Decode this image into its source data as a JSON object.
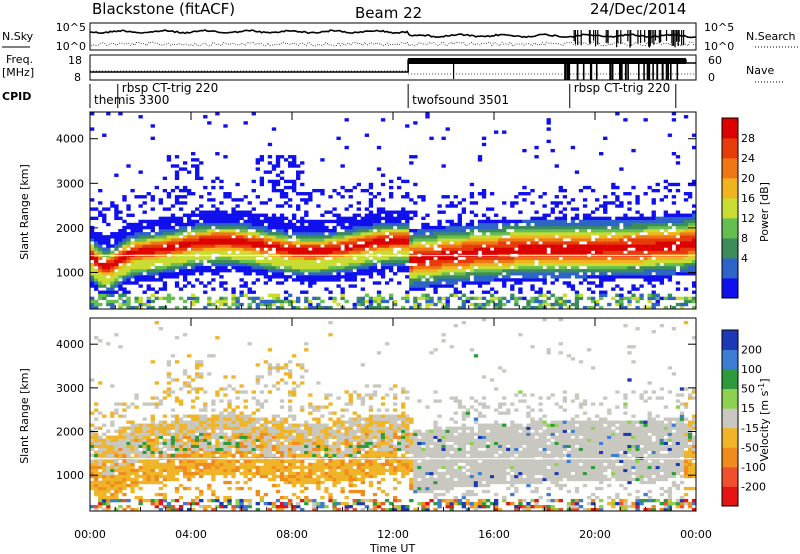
{
  "header": {
    "station": "Blackstone (fitACF)",
    "beam": "Beam 22",
    "date": "24/Dec/2014"
  },
  "top_panels": {
    "nsky_label": "N.Sky",
    "nsky_ticks": [
      "10^5",
      "10^0"
    ],
    "nsearch_label": "N.Search",
    "nsearch_ticks": [
      "10^5",
      "10^0"
    ],
    "freq_label_1": "Freq.",
    "freq_label_2": "[MHz]",
    "freq_ticks": [
      "18",
      "8"
    ],
    "nave_label": "Nave",
    "nave_ticks": [
      "60",
      "0"
    ],
    "cpid_label": "CPID",
    "cpid_segments": [
      {
        "name": "themis 3300",
        "start": 0.0,
        "end": 1.1
      },
      {
        "name": "rbsp CT-trig 220",
        "start": 1.1,
        "end": 12.6
      },
      {
        "name": "twofsound 3501",
        "start": 12.6,
        "end": 19.0
      },
      {
        "name": "rbsp CT-trig 220",
        "start": 19.0,
        "end": 23.2
      }
    ]
  },
  "colors": {
    "power": [
      "#1010ee",
      "#2d64c8",
      "#3c8c5a",
      "#64be50",
      "#c8dc32",
      "#f0b41e",
      "#f07814",
      "#e63c0a",
      "#dc0000"
    ],
    "velocity": [
      "#1c38b4",
      "#3c7cd2",
      "#2d9b3c",
      "#8cd250",
      "#c8c8c0",
      "#f0b428",
      "#f08c1e",
      "#f0502d",
      "#e61414"
    ]
  },
  "power_colorbar": {
    "label": "Power [dB]",
    "ticks": [
      "28",
      "24",
      "20",
      "16",
      "12",
      "8",
      "4"
    ]
  },
  "velocity_colorbar": {
    "label_main": "Velocity [m s",
    "label_exp": "-1",
    "label_end": "]",
    "ticks": [
      "200",
      "100",
      "50",
      "15",
      "-15",
      "-50",
      "-100",
      "-200"
    ]
  },
  "chart_data": {
    "type": "heatmap",
    "xlabel": "Time UT",
    "x_ticks": [
      "00:00",
      "04:00",
      "08:00",
      "12:00",
      "16:00",
      "20:00",
      "00:00"
    ],
    "xlim_hours": [
      0,
      24
    ],
    "ylabel": "Slant Range [km]",
    "y_ticks": [
      "4000",
      "3000",
      "2000",
      "1000"
    ],
    "ylim_km": [
      180,
      4600
    ],
    "panels": [
      "Power",
      "Velocity"
    ]
  }
}
